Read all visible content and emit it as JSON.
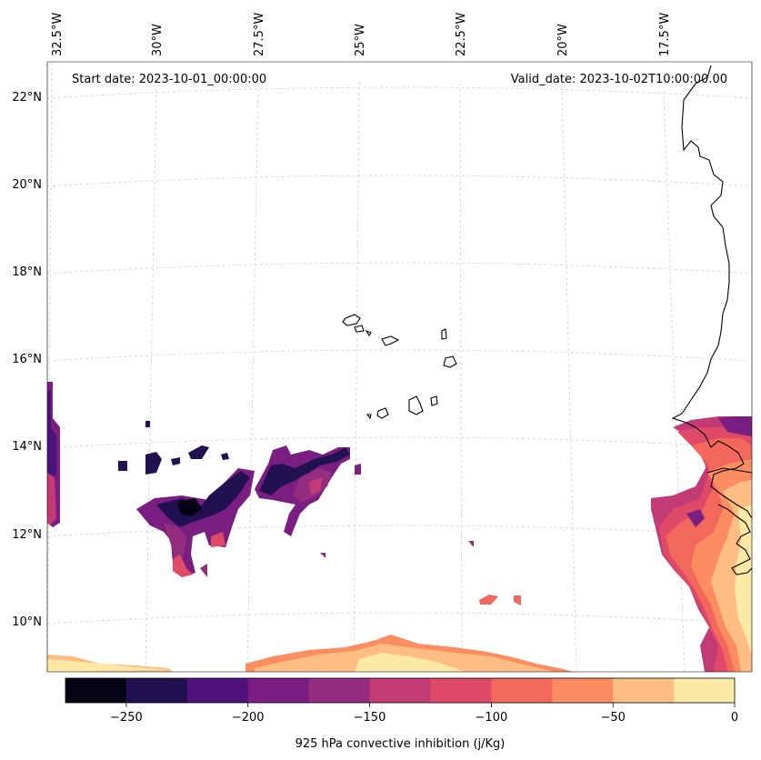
{
  "header": {
    "start_date": "Start date: 2023-10-01_00:00:00",
    "valid_date": "Valid_date: 2023-10-02T10:00:00.00"
  },
  "lon_ticks": [
    "32.5°W",
    "30°W",
    "27.5°W",
    "25°W",
    "22.5°W",
    "20°W",
    "17.5°W"
  ],
  "lat_ticks": [
    "22°N",
    "20°N",
    "18°N",
    "16°N",
    "14°N",
    "12°N",
    "10°N"
  ],
  "colorbar": {
    "label": "925 hPa convective inhibition (j/Kg)",
    "tick_labels": [
      "−250",
      "−200",
      "−150",
      "−100",
      "−50",
      "0"
    ],
    "bins": [
      {
        "from": -275,
        "to": -250,
        "color": "#050416"
      },
      {
        "from": -250,
        "to": -225,
        "color": "#221150"
      },
      {
        "from": -225,
        "to": -200,
        "color": "#4f127b"
      },
      {
        "from": -200,
        "to": -175,
        "color": "#7a1f81"
      },
      {
        "from": -175,
        "to": -150,
        "color": "#942c80"
      },
      {
        "from": -150,
        "to": -125,
        "color": "#c33b75"
      },
      {
        "from": -125,
        "to": -100,
        "color": "#df4a68"
      },
      {
        "from": -100,
        "to": -75,
        "color": "#f3675c"
      },
      {
        "from": -75,
        "to": -50,
        "color": "#fb8d61"
      },
      {
        "from": -50,
        "to": -25,
        "color": "#febd83"
      },
      {
        "from": -25,
        "to": 0,
        "color": "#fde8a6"
      }
    ]
  },
  "map": {
    "projection": "conic",
    "extent_lon": [
      "32.5°W",
      "16°W"
    ],
    "extent_lat": [
      "9°N",
      "22.5°N"
    ],
    "grid": true,
    "coastline_color": "#000000",
    "regions": [
      "Cabo Verde islands",
      "West African coast"
    ]
  }
}
